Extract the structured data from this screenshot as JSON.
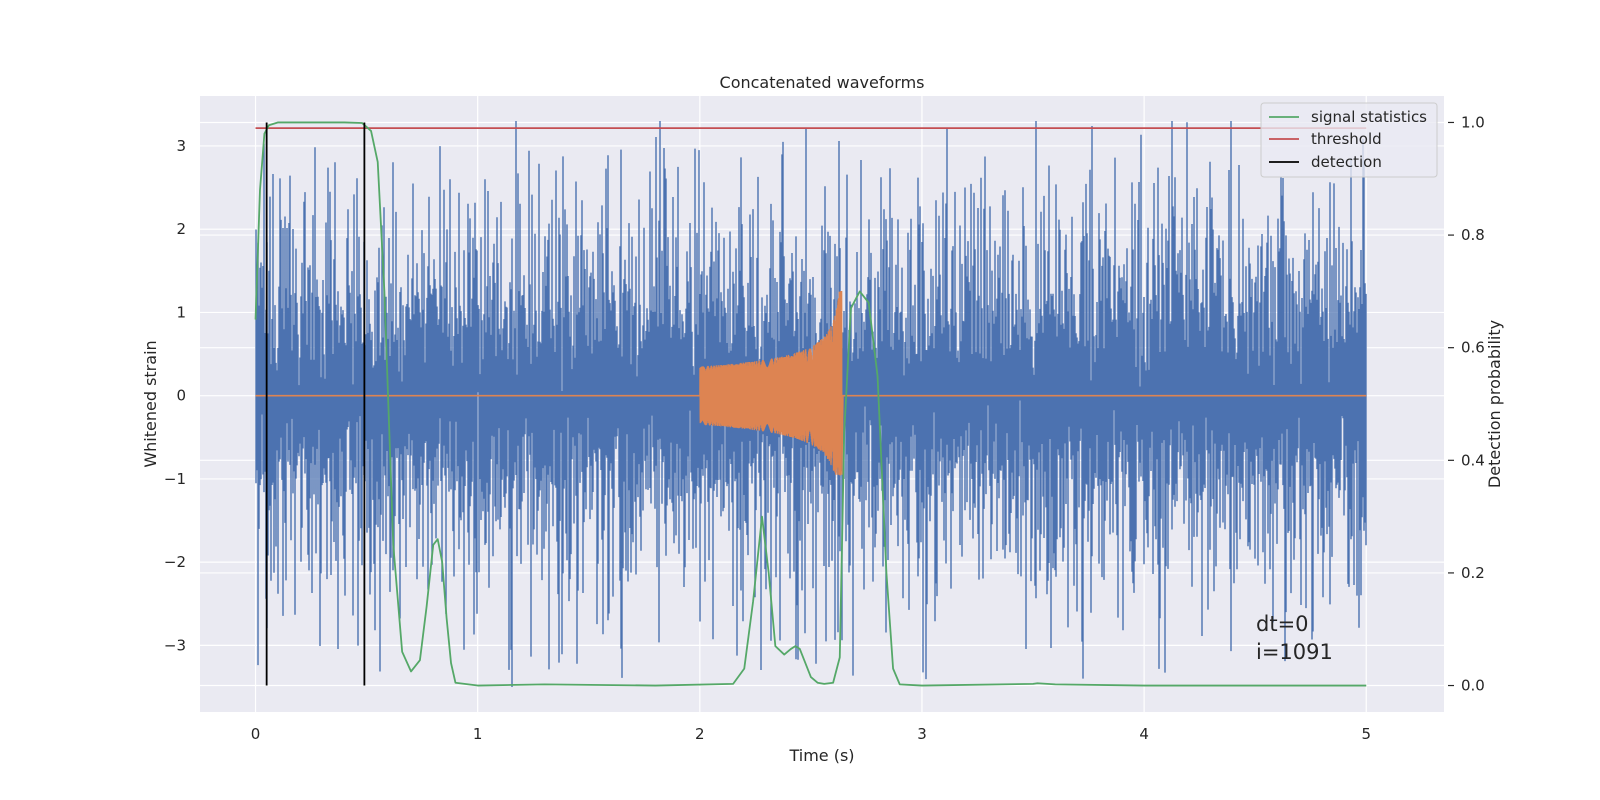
{
  "chart_data": {
    "type": "line",
    "title": "Concatenated waveforms",
    "xlabel": "Time (s)",
    "ylabel": "Whitened strain",
    "y2label": "Detection probability",
    "xlim": [
      -0.25,
      5.35
    ],
    "ylim": [
      -3.8,
      3.6
    ],
    "y2lim": [
      -0.047,
      1.047
    ],
    "xticks": [
      0,
      1,
      2,
      3,
      4,
      5
    ],
    "yticks": [
      -3,
      -2,
      -1,
      0,
      1,
      2,
      3
    ],
    "y2ticks": [
      0.0,
      0.2,
      0.4,
      0.6,
      0.8,
      1.0
    ],
    "y2tick_labels": [
      "0.0",
      "0.2",
      "0.4",
      "0.6",
      "0.8",
      "1.0"
    ],
    "grid": true,
    "legend_position": "top-right",
    "colors": {
      "plot_bg": "#eaeaf2",
      "grid": "#ffffff",
      "strain": "#4c72b0",
      "template": "#dd8452",
      "signal_statistics": "#55a868",
      "threshold": "#c44e52",
      "detection": "#000000"
    },
    "series": {
      "strain": {
        "x_range": [
          0,
          5
        ],
        "envelope_abs": 2.2,
        "peak_max": 3.3,
        "peak_min": -3.5
      },
      "template": {
        "t_start": 2.0,
        "t_merger": 2.64,
        "amp_start": 0.35,
        "amp_peak_pos": 1.25,
        "amp_peak_neg": -0.95
      },
      "signal_statistics": {
        "name": "signal statistics",
        "x": [
          0.0,
          0.02,
          0.04,
          0.06,
          0.1,
          0.2,
          0.3,
          0.4,
          0.48,
          0.52,
          0.55,
          0.58,
          0.62,
          0.66,
          0.7,
          0.74,
          0.77,
          0.8,
          0.82,
          0.84,
          0.86,
          0.88,
          0.9,
          1.0,
          1.3,
          1.8,
          2.15,
          2.2,
          2.24,
          2.28,
          2.31,
          2.34,
          2.38,
          2.41,
          2.43,
          2.45,
          2.47,
          2.5,
          2.53,
          2.56,
          2.6,
          2.63,
          2.65,
          2.68,
          2.72,
          2.76,
          2.8,
          2.84,
          2.87,
          2.9,
          3.0,
          3.5,
          3.52,
          3.6,
          4.0,
          4.5,
          5.0
        ],
        "y": [
          0.65,
          0.88,
          0.98,
          0.995,
          1.0,
          1.0,
          1.0,
          1.0,
          0.999,
          0.985,
          0.93,
          0.7,
          0.25,
          0.06,
          0.025,
          0.045,
          0.14,
          0.25,
          0.26,
          0.22,
          0.12,
          0.04,
          0.005,
          0.0,
          0.002,
          0.0,
          0.003,
          0.03,
          0.15,
          0.3,
          0.2,
          0.07,
          0.055,
          0.065,
          0.07,
          0.065,
          0.045,
          0.015,
          0.005,
          0.003,
          0.005,
          0.05,
          0.45,
          0.67,
          0.7,
          0.68,
          0.55,
          0.2,
          0.03,
          0.002,
          0.0,
          0.003,
          0.004,
          0.002,
          0.0,
          0.0,
          0.0
        ]
      },
      "threshold": {
        "name": "threshold",
        "x": [
          0,
          5
        ],
        "y": [
          0.99,
          0.99
        ]
      },
      "detection": {
        "name": "detection",
        "x": [
          0.05,
          0.49
        ],
        "y_range": [
          0.0,
          1.0
        ]
      }
    },
    "legend": [
      "signal statistics",
      "threshold",
      "detection"
    ],
    "annotations": [
      "dt=0",
      "i=1091"
    ]
  }
}
